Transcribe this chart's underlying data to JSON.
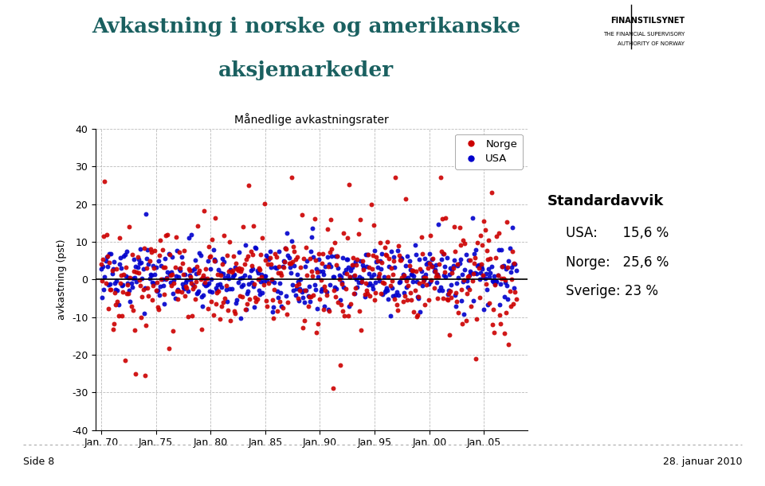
{
  "title_line1": "Avkastning i norske og amerikanske",
  "title_line2": "aksjemarkeder",
  "subtitle": "Månedlige avkastningsrater",
  "ylabel": "avkastning (pst)",
  "legend_norge": "Norge",
  "legend_usa": "USA",
  "color_norge": "#cc0000",
  "color_usa": "#0000cc",
  "title_color": "#1a6060",
  "xlim_start": 1969.5,
  "xlim_end": 2009.0,
  "ylim": [
    -40,
    40
  ],
  "yticks": [
    -40,
    -30,
    -20,
    -10,
    0,
    10,
    20,
    30,
    40
  ],
  "xtick_labels": [
    "Jan. 70",
    "Jan. 75",
    "Jan. 80",
    "Jan. 85",
    "Jan. 90",
    "Jan. 95",
    "Jan. 00",
    "Jan. 05"
  ],
  "xtick_values": [
    1970,
    1975,
    1980,
    1985,
    1990,
    1995,
    2000,
    2005
  ],
  "std_title": "Standardavvik",
  "std_usa": "USA:      15,6 %",
  "std_norge": "Norge:   25,6 %",
  "std_sverige": "Sverige: 23 %",
  "footer_left": "Side 8",
  "footer_right": "28. januar 2010",
  "background_color": "#ffffff",
  "seed": 42,
  "n_months": 456,
  "std_norge_val": 7.2,
  "std_usa_val": 4.2,
  "mean_val": 0.6
}
